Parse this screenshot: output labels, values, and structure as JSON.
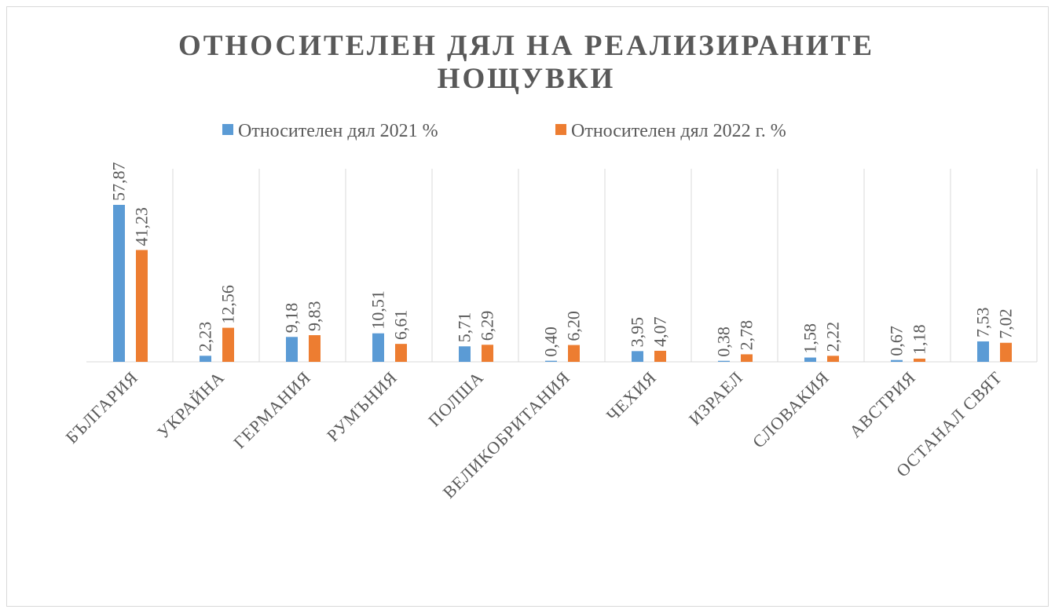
{
  "chart_data": {
    "type": "bar",
    "title": "ОТНОСИТЕЛЕН ДЯЛ НА РЕАЛИЗИРАНИТЕ НОЩУВКИ",
    "categories": [
      "БЪЛГАРИЯ",
      "УКРАЙНА",
      "ГЕРМАНИЯ",
      "РУМЪНИЯ",
      "ПОЛША",
      "ВЕЛИКОБРИТАНИЯ",
      "ЧЕХИЯ",
      "ИЗРАЕЛ",
      "СЛОВАКИЯ",
      "АВСТРИЯ",
      "ОСТАНАЛ СВЯТ"
    ],
    "series": [
      {
        "name": "Относителен дял 2021 %",
        "color": "#5b9bd5",
        "values": [
          57.87,
          2.23,
          9.18,
          10.51,
          5.71,
          0.4,
          3.95,
          0.38,
          1.58,
          0.67,
          7.53
        ],
        "value_labels": [
          "57,87",
          "2,23",
          "9,18",
          "10,51",
          "5,71",
          "0,40",
          "3,95",
          "0,38",
          "1,58",
          "0,67",
          "7,53"
        ]
      },
      {
        "name": "Относителен дял 2022 г. %",
        "color": "#ed7d31",
        "values": [
          41.23,
          12.56,
          9.83,
          6.61,
          6.29,
          6.2,
          4.07,
          2.78,
          2.22,
          1.18,
          7.02
        ],
        "value_labels": [
          "41,23",
          "12,56",
          "9,83",
          "6,61",
          "6,29",
          "6,20",
          "4,07",
          "2,78",
          "2,22",
          "1,18",
          "7,02"
        ]
      }
    ],
    "legend": "top"
  }
}
